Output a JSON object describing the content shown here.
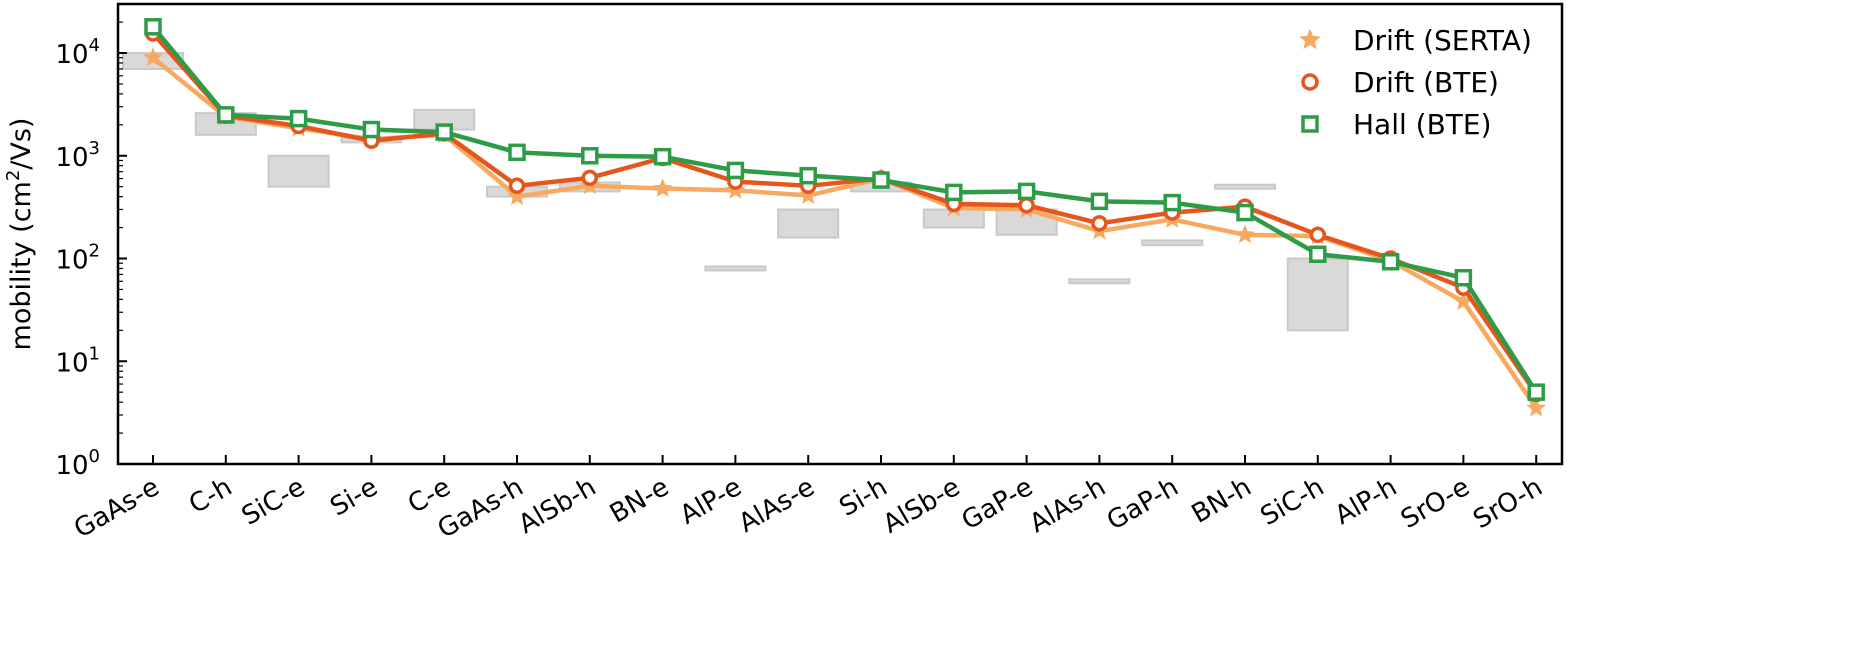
{
  "chart_data": {
    "type": "line",
    "title": "",
    "xlabel": "",
    "ylabel": "mobility (cm²/Vs)",
    "ylabel_parts": {
      "pre": "mobility (cm",
      "sup": "2",
      "post": "/Vs)"
    },
    "y_scale": "log",
    "ylim": [
      1,
      30000
    ],
    "y_ticks": [
      {
        "value": 1,
        "base": "10",
        "exp": "0"
      },
      {
        "value": 10,
        "base": "10",
        "exp": "1"
      },
      {
        "value": 100,
        "base": "10",
        "exp": "2"
      },
      {
        "value": 1000,
        "base": "10",
        "exp": "3"
      },
      {
        "value": 10000,
        "base": "10",
        "exp": "4"
      }
    ],
    "grid": false,
    "legend_position": "top-right",
    "categories": [
      "GaAs-e",
      "C-h",
      "SiC-e",
      "Si-e",
      "C-e",
      "GaAs-h",
      "AlSb-h",
      "BN-e",
      "AlP-e",
      "AlAs-e",
      "Si-h",
      "AlSb-e",
      "GaP-e",
      "AlAs-h",
      "GaP-h",
      "BN-h",
      "SiC-h",
      "AlP-h",
      "SrO-e",
      "SrO-h"
    ],
    "series": [
      {
        "name": "Drift (SERTA)",
        "color": "#f7a962",
        "marker": "star",
        "values": [
          9000,
          2400,
          1850,
          1450,
          1600,
          400,
          510,
          480,
          460,
          410,
          600,
          310,
          300,
          185,
          240,
          170,
          165,
          95,
          38,
          3.5
        ]
      },
      {
        "name": "Drift (BTE)",
        "color": "#e4561b",
        "marker": "circle",
        "values": [
          15500,
          2450,
          1950,
          1400,
          1650,
          510,
          610,
          950,
          560,
          510,
          600,
          340,
          330,
          220,
          280,
          320,
          170,
          100,
          52,
          4.8
        ]
      },
      {
        "name": "Hall (BTE)",
        "color": "#2e9c47",
        "marker": "square",
        "values": [
          18000,
          2500,
          2300,
          1800,
          1700,
          1080,
          1000,
          980,
          720,
          640,
          580,
          440,
          450,
          360,
          350,
          280,
          110,
          93,
          65,
          5.0
        ]
      }
    ],
    "experimental_ranges": {
      "color": "#d9d9d9",
      "ranges": [
        {
          "category": "GaAs-e",
          "low": 7000,
          "high": 10000
        },
        {
          "category": "C-h",
          "low": 1600,
          "high": 2600
        },
        {
          "category": "SiC-e",
          "low": 500,
          "high": 1000
        },
        {
          "category": "Si-e",
          "low": 1350,
          "high": 1500
        },
        {
          "category": "C-e",
          "low": 1800,
          "high": 2800
        },
        {
          "category": "GaAs-h",
          "low": 400,
          "high": 500
        },
        {
          "category": "AlSb-h",
          "low": 450,
          "high": 550
        },
        {
          "category": "AlP-e",
          "low": 80,
          "high": 80
        },
        {
          "category": "AlAs-e",
          "low": 160,
          "high": 300
        },
        {
          "category": "Si-h",
          "low": 450,
          "high": 550
        },
        {
          "category": "AlSb-e",
          "low": 200,
          "high": 300
        },
        {
          "category": "GaP-e",
          "low": 170,
          "high": 300
        },
        {
          "category": "AlAs-h",
          "low": 60,
          "high": 60
        },
        {
          "category": "GaP-h",
          "low": 135,
          "high": 150
        },
        {
          "category": "BN-h",
          "low": 500,
          "high": 500
        },
        {
          "category": "SiC-h",
          "low": 20,
          "high": 100
        }
      ]
    }
  }
}
